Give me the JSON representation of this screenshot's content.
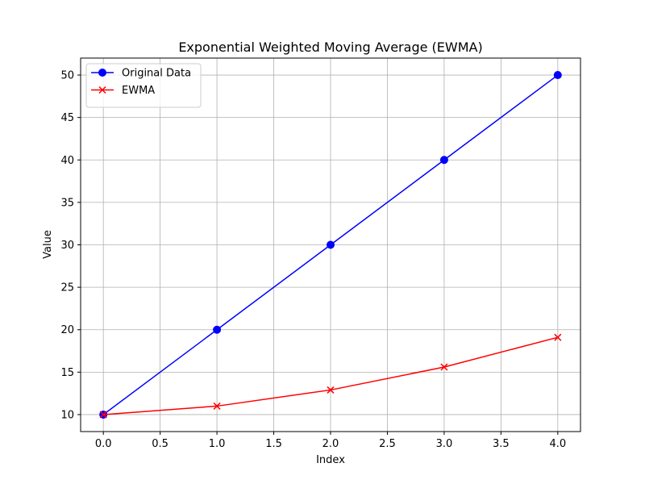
{
  "chart_data": {
    "type": "line",
    "title": "Exponential Weighted Moving Average (EWMA)",
    "xlabel": "Index",
    "ylabel": "Value",
    "x": [
      0,
      1,
      2,
      3,
      4
    ],
    "xlim": [
      -0.2,
      4.2
    ],
    "ylim": [
      8,
      52
    ],
    "xticks": [
      0.0,
      0.5,
      1.0,
      1.5,
      2.0,
      2.5,
      3.0,
      3.5,
      4.0
    ],
    "xtick_labels": [
      "0.0",
      "0.5",
      "1.0",
      "1.5",
      "2.0",
      "2.5",
      "3.0",
      "3.5",
      "4.0"
    ],
    "yticks": [
      10,
      15,
      20,
      25,
      30,
      35,
      40,
      45,
      50
    ],
    "ytick_labels": [
      "10",
      "15",
      "20",
      "25",
      "30",
      "35",
      "40",
      "45",
      "50"
    ],
    "grid": true,
    "legend_position": "top-left",
    "series": [
      {
        "name": "Original Data",
        "values": [
          10,
          20,
          30,
          40,
          50
        ],
        "color": "#0000ff",
        "marker": "circle"
      },
      {
        "name": "EWMA",
        "values": [
          10,
          11,
          12.9,
          15.6,
          19.1
        ],
        "color": "#ff0000",
        "marker": "x"
      }
    ]
  }
}
